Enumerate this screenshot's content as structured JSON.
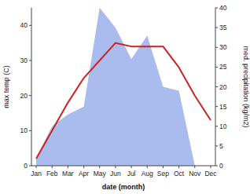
{
  "chart_data": {
    "type": "line",
    "xlabel": "date (month)",
    "ylabel": "max temp (C)",
    "y2label": "med. precipitation (kg/m2)",
    "categories": [
      "Jan",
      "Feb",
      "Mar",
      "Apr",
      "May",
      "Jun",
      "Jul",
      "Aug",
      "Sep",
      "Oct",
      "Nov",
      "Dec"
    ],
    "series": [
      {
        "type": "area",
        "axis": "y2",
        "color": "#aabbee",
        "values": [
          2,
          10,
          13,
          15,
          40,
          35,
          27,
          33,
          20,
          19,
          0,
          0
        ]
      },
      {
        "type": "line",
        "color": "#cc2222",
        "values": [
          2,
          10,
          18,
          25,
          30,
          35,
          34,
          34,
          34,
          28,
          20,
          13
        ]
      }
    ],
    "ylim": [
      0,
      45
    ],
    "yticks": [
      0,
      10,
      20,
      30,
      40
    ],
    "y2lim": [
      0,
      40
    ],
    "y2ticks": [
      0,
      5,
      10,
      15,
      20,
      25,
      30,
      35,
      40
    ],
    "grid": false
  }
}
